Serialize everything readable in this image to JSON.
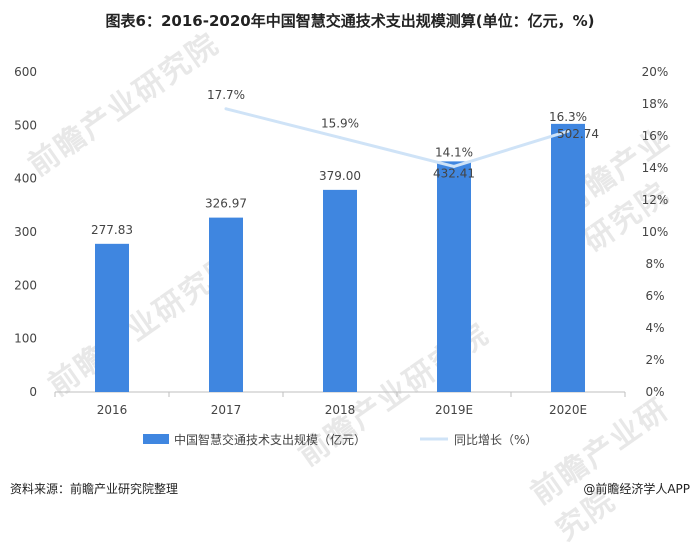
{
  "title": "图表6：2016-2020年中国智慧交通技术支出规模测算(单位：亿元，%)",
  "footer": {
    "source": "资料来源：前瞻产业研究院整理",
    "brand": "@前瞻经济学人APP"
  },
  "watermark": "前瞻产业研究院",
  "colors": {
    "bar": "#3f86e0",
    "line": "#cfe3f7",
    "axis": "#bfbfbf"
  },
  "chart_data": {
    "type": "bar",
    "categories": [
      "2016",
      "2017",
      "2018",
      "2019E",
      "2020E"
    ],
    "series": [
      {
        "name": "中国智慧交通技术支出规模（亿元）",
        "type": "bar",
        "axis": "left",
        "values": [
          277.83,
          326.97,
          379.0,
          432.41,
          502.74
        ],
        "labels": [
          "277.83",
          "326.97",
          "379.00",
          "432.41",
          "502.74"
        ]
      },
      {
        "name": "同比增长（%）",
        "type": "line",
        "axis": "right",
        "values": [
          null,
          17.7,
          15.9,
          14.1,
          16.3
        ],
        "labels": [
          "",
          "17.7%",
          "15.9%",
          "14.1%",
          "16.3%"
        ]
      }
    ],
    "ylim_left": [
      0,
      600
    ],
    "yticks_left": [
      "0",
      "100",
      "200",
      "300",
      "400",
      "500",
      "600"
    ],
    "ylim_right": [
      0,
      20
    ],
    "yticks_right": [
      "0%",
      "2%",
      "4%",
      "6%",
      "8%",
      "10%",
      "12%",
      "14%",
      "16%",
      "18%",
      "20%"
    ],
    "grid": false,
    "legend": "bottom"
  }
}
